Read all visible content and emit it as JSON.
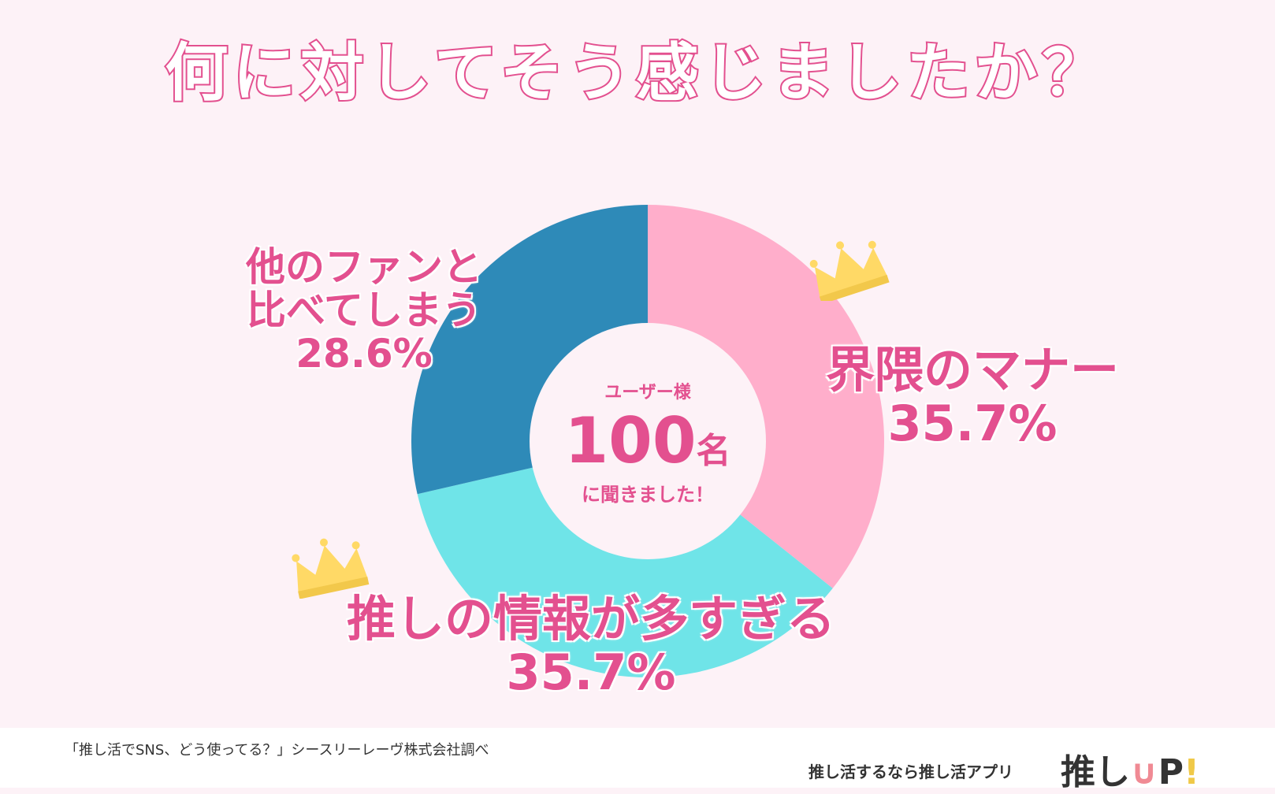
{
  "title": "何に対してそう感じましたか？",
  "chart_data": {
    "type": "pie",
    "title": "何に対してそう感じましたか？",
    "slices": [
      {
        "label": "界隈のマナー",
        "value": 35.7,
        "value_label": "35.7%",
        "color": "#ffaecb"
      },
      {
        "label": "推しの情報が多すぎる",
        "value": 35.7,
        "value_label": "35.7%",
        "color": "#6fe4e8"
      },
      {
        "label": "他のファンと比べてしまう",
        "value": 28.6,
        "value_label": "28.6%",
        "color": "#2e8ab8"
      }
    ]
  },
  "labels": {
    "blue_line1": "他のファンと",
    "blue_line2": "比べてしまう",
    "blue_pct": "28.6%",
    "pink_name": "界隈のマナー",
    "pink_pct": "35.7%",
    "cyan_name": "推しの情報が多すぎる",
    "cyan_pct": "35.7%"
  },
  "center": {
    "top": "ユーザー様",
    "number": "100",
    "unit": "名",
    "bottom": "に聞きました！"
  },
  "footer": {
    "source": "「推し活でSNS、どう使ってる？」シースリーレーヴ株式会社調べ",
    "app_tagline": "推し活するなら推し活アプリ",
    "logo_text": "推し",
    "logo_u": "∪",
    "logo_p": "P",
    "logo_ex": "!"
  },
  "colors": {
    "accent": "#e3508f",
    "background": "#fdf2f7",
    "crown": "#ffd966"
  }
}
